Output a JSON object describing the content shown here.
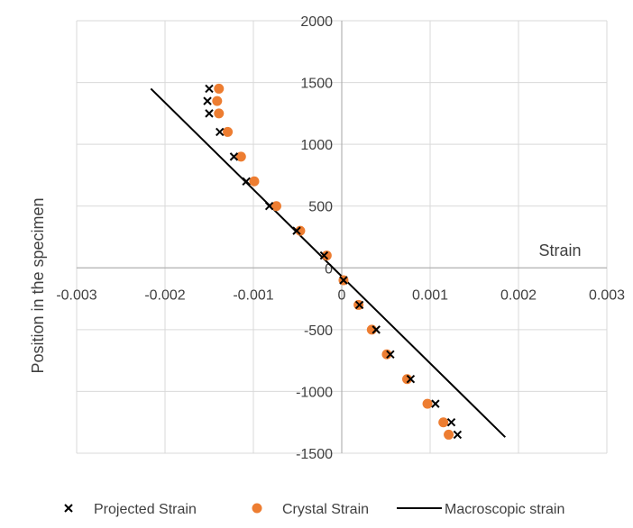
{
  "chart_data": {
    "type": "scatter",
    "title": "",
    "xlabel": "Strain",
    "ylabel": "Position in the specimen",
    "xlim": [
      -0.003,
      0.003
    ],
    "ylim": [
      -1500,
      2000
    ],
    "xticks": [
      -0.003,
      -0.002,
      -0.001,
      0,
      0.001,
      0.002,
      0.003
    ],
    "xtick_labels": [
      "-0.003",
      "-0.002",
      "-0.001",
      "0",
      "0.001",
      "0.002",
      "0.003"
    ],
    "yticks": [
      -1500,
      -1000,
      -500,
      0,
      500,
      1000,
      1500,
      2000
    ],
    "ytick_labels": [
      "-1500",
      "-1000",
      "-500",
      "0",
      "500",
      "1000",
      "1500",
      "2000"
    ],
    "grid": true,
    "legend_position": "bottom",
    "series": [
      {
        "name": "Projected Strain",
        "marker": "x",
        "color": "#000000",
        "x": [
          -0.0015,
          -0.00152,
          -0.0015,
          -0.00138,
          -0.00122,
          -0.00108,
          -0.00082,
          -0.00051,
          -0.0002,
          2e-05,
          0.0002,
          0.00039,
          0.00055,
          0.00078,
          0.00106,
          0.00124,
          0.00131
        ],
        "y": [
          1450,
          1350,
          1250,
          1100,
          900,
          700,
          500,
          300,
          100,
          -100,
          -300,
          -500,
          -700,
          -900,
          -1100,
          -1250,
          -1350
        ]
      },
      {
        "name": "Crystal Strain",
        "marker": "circle",
        "color": "#ED7D31",
        "x": [
          -0.00139,
          -0.00141,
          -0.00139,
          -0.00129,
          -0.00114,
          -0.00099,
          -0.00074,
          -0.00047,
          -0.00017,
          2e-05,
          0.00019,
          0.00034,
          0.00051,
          0.00074,
          0.00097,
          0.00115,
          0.00121
        ],
        "y": [
          1450,
          1350,
          1250,
          1100,
          900,
          700,
          500,
          300,
          100,
          -100,
          -300,
          -500,
          -700,
          -900,
          -1100,
          -1250,
          -1350
        ]
      },
      {
        "name": "Macroscopic strain",
        "marker": "line",
        "color": "#000000",
        "x": [
          -0.00216,
          0.00185
        ],
        "y": [
          1450,
          -1370
        ]
      }
    ]
  }
}
